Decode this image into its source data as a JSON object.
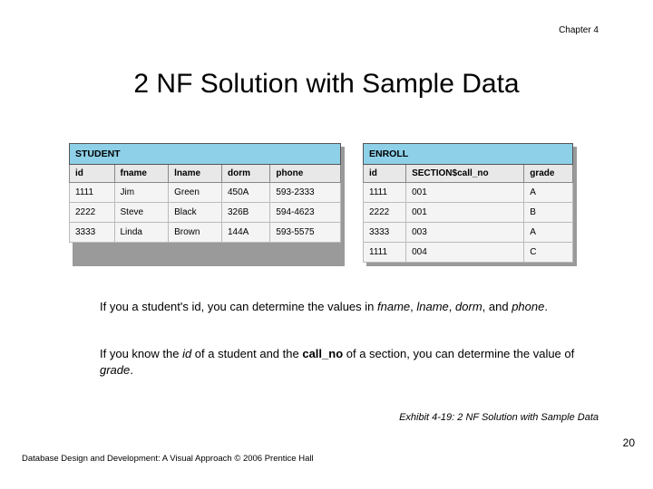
{
  "chapter": "Chapter 4",
  "title": "2 NF Solution with Sample Data",
  "studentTable": {
    "name": "STUDENT",
    "columns": [
      "id",
      "fname",
      "lname",
      "dorm",
      "phone"
    ],
    "rows": [
      [
        "1111",
        "Jim",
        "Green",
        "450A",
        "593-2333"
      ],
      [
        "2222",
        "Steve",
        "Black",
        "326B",
        "594-4623"
      ],
      [
        "3333",
        "Linda",
        "Brown",
        "144A",
        "593-5575"
      ]
    ],
    "colWidths": [
      "50px",
      "62px",
      "62px",
      "56px",
      "70px"
    ]
  },
  "enrollTable": {
    "name": "ENROLL",
    "columns": [
      "id",
      "SECTION$call_no",
      "grade"
    ],
    "rows": [
      [
        "1111",
        "001",
        "A"
      ],
      [
        "2222",
        "001",
        "B"
      ],
      [
        "3333",
        "003",
        "A"
      ],
      [
        "1111",
        "004",
        "C"
      ]
    ],
    "colWidths": [
      "50px",
      "120px",
      "52px"
    ]
  },
  "para1": {
    "t1": "If you a student's id, you can determine the values in ",
    "i1": "fname",
    "t2": ", ",
    "i2": "lname",
    "t3": ", ",
    "i3": "dorm",
    "t4": ", and ",
    "i4": "phone",
    "t5": "."
  },
  "para2": {
    "t1": "If you know the ",
    "i1": "id",
    "t2": " of a student and the ",
    "b1": "call_no",
    "t3": " of a section, you can determine the value of ",
    "i2": "grade",
    "t4": "."
  },
  "exhibit": "Exhibit 4-19: 2 NF Solution with Sample Data",
  "footer": "Database Design and Development: A Visual Approach   © 2006 Prentice Hall",
  "pageNum": "20",
  "colors": {
    "headerBg": "#8dd0e8",
    "colBg": "#e8e8e8",
    "cellBg": "#f4f4f4"
  }
}
